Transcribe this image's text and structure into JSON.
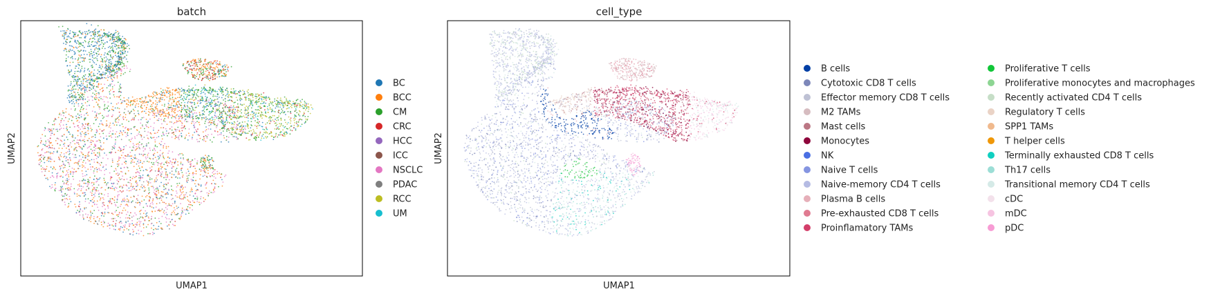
{
  "chart_data": [
    {
      "type": "scatter",
      "title": "batch",
      "xlabel": "UMAP1",
      "ylabel": "UMAP2",
      "grid": false,
      "legend_placement": "right",
      "categories": [
        "BC",
        "BCC",
        "CM",
        "CRC",
        "HCC",
        "ICC",
        "NSCLC",
        "PDAC",
        "RCC",
        "UM"
      ],
      "colors": {
        "BC": "#1f77b4",
        "BCC": "#ff7f0e",
        "CM": "#2ca02c",
        "CRC": "#d62728",
        "HCC": "#9467bd",
        "ICC": "#8c564b",
        "NSCLC": "#e377c2",
        "PDAC": "#7f7f7f",
        "RCC": "#bcbd22",
        "UM": "#17becf"
      }
    },
    {
      "type": "scatter",
      "title": "cell_type",
      "xlabel": "UMAP1",
      "ylabel": "UMAP2",
      "grid": false,
      "legend_placement": "right",
      "categories": [
        "B cells",
        "Cytotoxic CD8 T cells",
        "Effector memory CD8 T cells",
        "M2 TAMs",
        "Mast cells",
        "Monocytes",
        "NK",
        "Naive T cells",
        "Naive-memory CD4 T cells",
        "Plasma B cells",
        "Pre-exhausted CD8 T cells",
        "Proinflamatory TAMs",
        "Proliferative T cells",
        "Proliferative monocytes and macrophages",
        "Recently activated CD4 T cells",
        "Regulatory T cells",
        "SPP1 TAMs",
        "T helper cells",
        "Terminally exhausted CD8 T cells",
        "Th17 cells",
        "Transitional memory CD4 T cells",
        "cDC",
        "mDC",
        "pDC"
      ],
      "colors": {
        "B cells": "#023fa5",
        "Cytotoxic CD8 T cells": "#7d87b9",
        "Effector memory CD8 T cells": "#bec1d4",
        "M2 TAMs": "#d6bcc0",
        "Mast cells": "#bb7784",
        "Monocytes": "#8e063b",
        "NK": "#4a6fe3",
        "Naive T cells": "#8595e1",
        "Naive-memory CD4 T cells": "#b5bbe3",
        "Plasma B cells": "#e6afb9",
        "Pre-exhausted CD8 T cells": "#e07b91",
        "Proinflamatory TAMs": "#d33f6a",
        "Proliferative T cells": "#11c638",
        "Proliferative monocytes and macrophages": "#8dd593",
        "Recently activated CD4 T cells": "#c6dec7",
        "Regulatory T cells": "#ead3c6",
        "SPP1 TAMs": "#f0b98d",
        "T helper cells": "#ef9708",
        "Terminally exhausted CD8 T cells": "#0fcfc0",
        "Th17 cells": "#9cded6",
        "Transitional memory CD4 T cells": "#d5eae7",
        "cDC": "#f3e1eb",
        "mDC": "#f6c4e1",
        "pDC": "#f79cd4"
      }
    }
  ]
}
